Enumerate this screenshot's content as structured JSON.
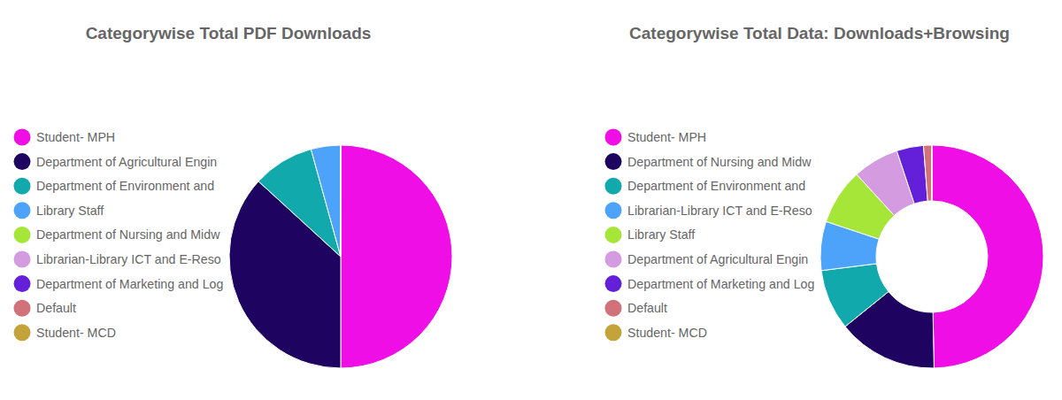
{
  "chart_data": [
    {
      "type": "pie",
      "title": "Categorywise Total PDF Downloads",
      "categories": [
        "Student- MPH",
        "Department of Agricultural Engin",
        "Department of Environment and",
        "Library Staff",
        "Department of Nursing and Midw",
        "Librarian-Library ICT and E-Reso",
        "Department of Marketing and Log",
        "Default",
        "Student- MCD"
      ],
      "values": [
        50,
        36.8,
        8.9,
        4.3,
        0,
        0,
        0,
        0,
        0
      ],
      "colors": [
        "#f00ee6",
        "#1e0361",
        "#12a9ad",
        "#4ca3f9",
        "#a5e639",
        "#d49be0",
        "#6320d8",
        "#d1717a",
        "#c4a43a"
      ],
      "legend": "left"
    },
    {
      "type": "donut",
      "title": "Categorywise Total Data: Downloads+Browsing",
      "categories": [
        "Student- MPH",
        "Department of Nursing and Midw",
        "Department of Environment and",
        "Librarian-Library ICT and E-Reso",
        "Library Staff",
        "Department of Agricultural Engin",
        "Department of Marketing and Log",
        "Default",
        "Student- MCD"
      ],
      "values": [
        49.7,
        14.5,
        8.8,
        7.1,
        8.1,
        6.7,
        3.9,
        1.2,
        0
      ],
      "colors": [
        "#f00ee6",
        "#1e0361",
        "#12a9ad",
        "#4ca3f9",
        "#a5e639",
        "#d49be0",
        "#6320d8",
        "#d1717a",
        "#c4a43a"
      ],
      "legend": "left"
    }
  ]
}
